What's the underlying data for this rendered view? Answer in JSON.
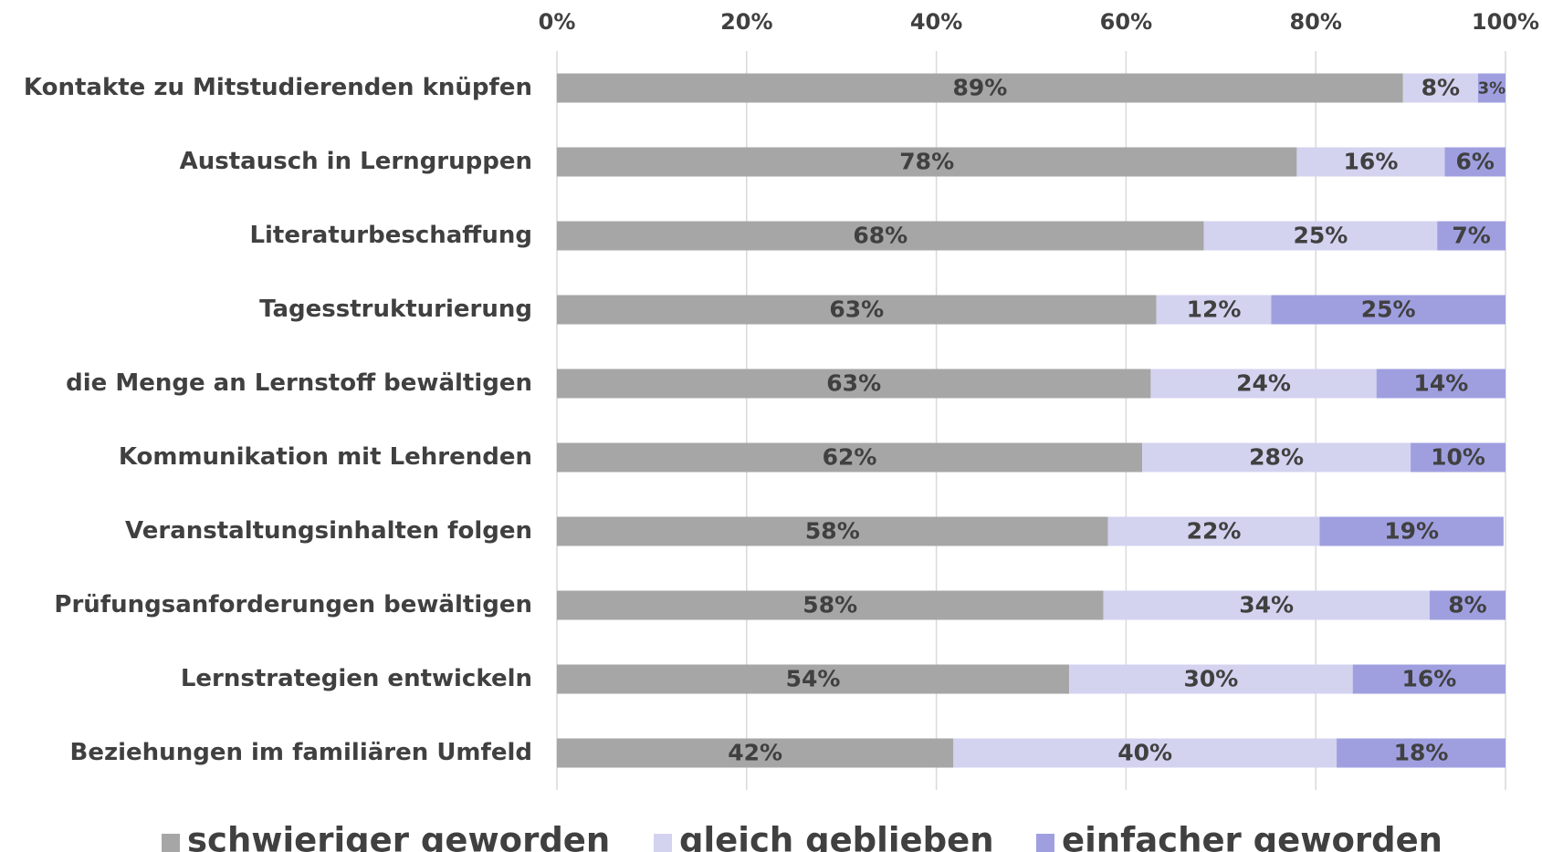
{
  "chart_data": {
    "type": "stacked_bar_horizontal",
    "categories": [
      "Kontakte zu Mitstudierenden knüpfen",
      "Austausch in Lerngruppen",
      "Literaturbeschaffung",
      "Tagesstrukturierung",
      "die Menge an Lernstoff bewältigen",
      "Kommunikation mit Lehrenden",
      "Veranstaltungsinhalten folgen",
      "Prüfungsanforderungen bewältigen",
      "Lernstrategien entwickeln",
      "Beziehungen im familiären Umfeld"
    ],
    "series": [
      {
        "name": "schwieriger geworden",
        "color": "#a6a6a6",
        "values": [
          89.2,
          78.0,
          68.2,
          63.2,
          62.6,
          61.7,
          58.1,
          57.6,
          54.0,
          41.8
        ],
        "value_labels": [
          "89%",
          "78%",
          "68%",
          "63%",
          "63%",
          "62%",
          "58%",
          "58%",
          "54%",
          "42%"
        ]
      },
      {
        "name": "gleich geblieben",
        "color": "#d3d3f0",
        "values": [
          7.9,
          15.6,
          24.6,
          12.1,
          23.8,
          28.3,
          22.3,
          34.4,
          29.9,
          40.4
        ],
        "value_labels": [
          "8%",
          "16%",
          "25%",
          "12%",
          "24%",
          "28%",
          "22%",
          "34%",
          "30%",
          "40%"
        ]
      },
      {
        "name": "einfacher geworden",
        "color": "#9f9fe0",
        "values": [
          2.9,
          6.4,
          7.2,
          24.7,
          13.6,
          10.0,
          19.4,
          8.0,
          16.1,
          17.8
        ],
        "value_labels": [
          "3%",
          "6%",
          "7%",
          "25%",
          "14%",
          "10%",
          "19%",
          "8%",
          "16%",
          "18%"
        ]
      }
    ],
    "xlim": [
      0,
      100
    ],
    "xticks": [
      {
        "value": 0,
        "label": "0%"
      },
      {
        "value": 20,
        "label": "20%"
      },
      {
        "value": 40,
        "label": "40%"
      },
      {
        "value": 60,
        "label": "60%"
      },
      {
        "value": 80,
        "label": "80%"
      },
      {
        "value": 100,
        "label": "100%"
      }
    ],
    "grid": true,
    "legend": "bottom"
  }
}
